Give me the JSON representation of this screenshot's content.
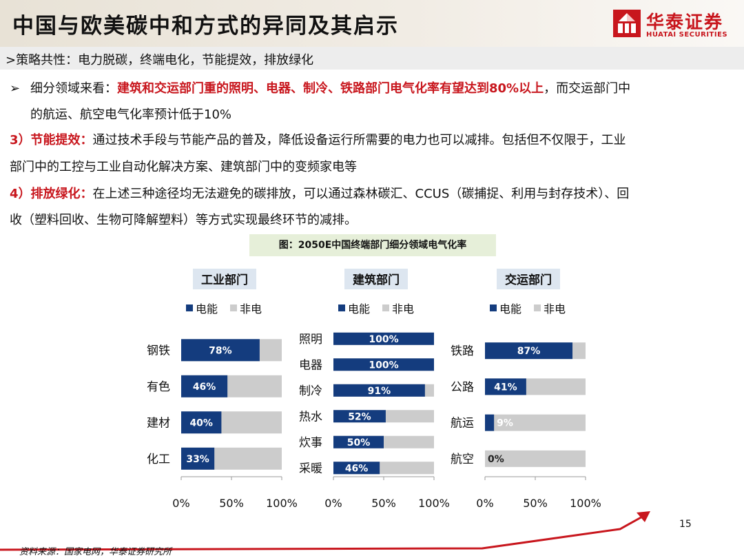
{
  "header": {
    "title": "中国与欧美碳中和方式的异同及其启示",
    "logo_cn": "华泰证券",
    "logo_en": "HUATAI SECURITIES"
  },
  "subtitle": ">策略共性：电力脱碳，终端电化，节能提效，排放绿化",
  "body": {
    "p1_bullet": "➢",
    "p1_lead": "细分领域来看：",
    "p1_red": "建筑和交运部门重的照明、电器、制冷、铁路部门电气化率有望达到80%以上",
    "p1_rest": "，而交运部门中",
    "p1_line2": "的航运、航空电气化率预计低于10%",
    "p2_red": "3）节能提效：",
    "p2_rest": "通过技术手段与节能产品的普及，降低设备运行所需要的电力也可以减排。包括但不仅限于，工业",
    "p2_line2": "部门中的工控与工业自动化解决方案、建筑部门中的变频家电等",
    "p3_red": "4）排放绿化：",
    "p3_rest": "在上述三种途径均无法避免的碳排放，可以通过森林碳汇、CCUS（碳捕捉、利用与封存技术）、回",
    "p3_line2": "收（塑料回收、生物可降解塑料）等方式实现最终环节的减排。"
  },
  "caption": "图：2050E中国终端部门细分领域电气化率",
  "colors": {
    "electric": "#143c7e",
    "non_electric": "#cccccc",
    "accent": "#c8161d",
    "panel_title_bg": "#dde6f0"
  },
  "chart_data": [
    {
      "type": "bar",
      "orientation": "horizontal",
      "stacked": true,
      "title": "工业部门",
      "legend": [
        "电能",
        "非电"
      ],
      "categories": [
        "钢铁",
        "有色",
        "建材",
        "化工"
      ],
      "values": [
        78,
        46,
        40,
        33
      ],
      "value_labels": [
        "78%",
        "46%",
        "40%",
        "33%"
      ],
      "xlim": [
        0,
        100
      ],
      "xticks": [
        "0%",
        "50%",
        "100%"
      ]
    },
    {
      "type": "bar",
      "orientation": "horizontal",
      "stacked": true,
      "title": "建筑部门",
      "legend": [
        "电能",
        "非电"
      ],
      "categories": [
        "照明",
        "电器",
        "制冷",
        "热水",
        "炊事",
        "采暖"
      ],
      "values": [
        100,
        100,
        91,
        52,
        50,
        46
      ],
      "value_labels": [
        "100%",
        "100%",
        "91%",
        "52%",
        "50%",
        "46%"
      ],
      "xlim": [
        0,
        100
      ],
      "xticks": [
        "0%",
        "50%",
        "100%"
      ]
    },
    {
      "type": "bar",
      "orientation": "horizontal",
      "stacked": true,
      "title": "交运部门",
      "legend": [
        "电能",
        "非电"
      ],
      "categories": [
        "铁路",
        "公路",
        "航运",
        "航空"
      ],
      "values": [
        87,
        41,
        9,
        0
      ],
      "value_labels": [
        "87%",
        "41%",
        "9%",
        "0%"
      ],
      "xlim": [
        0,
        100
      ],
      "xticks": [
        "0%",
        "50%",
        "100%"
      ]
    }
  ],
  "page_number": "15",
  "source": "资料来源：国家电网，华泰证券研究所"
}
